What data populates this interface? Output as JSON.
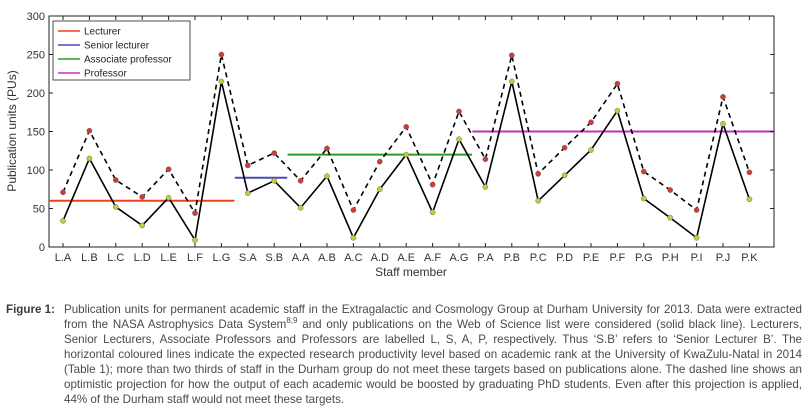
{
  "chart_data": {
    "type": "line",
    "xlabel": "Staff member",
    "ylabel": "Publication units (PUs)",
    "ylim": [
      0,
      300
    ],
    "yticks": [
      0,
      50,
      100,
      150,
      200,
      250,
      300
    ],
    "categories": [
      "L.A",
      "L.B",
      "L.C",
      "L.D",
      "L.E",
      "L.F",
      "L.G",
      "S.A",
      "S.B",
      "A.A",
      "A.B",
      "A.C",
      "A.D",
      "A.E",
      "A.F",
      "A.G",
      "P.A",
      "P.B",
      "P.C",
      "P.D",
      "P.E",
      "P.F",
      "P.G",
      "P.H",
      "P.I",
      "P.J",
      "P.K"
    ],
    "series": [
      {
        "name": "Publications (solid)",
        "style": "solid",
        "color": "#000000",
        "marker_color": "#c8c83a",
        "values": [
          34,
          115,
          52,
          28,
          64,
          9,
          215,
          70,
          86,
          51,
          92,
          12,
          75,
          120,
          45,
          140,
          78,
          215,
          60,
          93,
          126,
          177,
          63,
          38,
          12,
          160,
          62
        ]
      },
      {
        "name": "With PhD students (dashed)",
        "style": "dashed",
        "color": "#000000",
        "marker_color": "#d23a3a",
        "values": [
          71,
          151,
          87,
          65,
          101,
          44,
          250,
          106,
          122,
          86,
          128,
          48,
          111,
          156,
          81,
          176,
          114,
          249,
          95,
          129,
          162,
          212,
          98,
          74,
          48,
          195,
          97
        ]
      }
    ],
    "targets": [
      {
        "name": "Lecturer",
        "color": "#f04020",
        "value": 60,
        "from": "L.A",
        "to": "L.G"
      },
      {
        "name": "Senior lecturer",
        "color": "#4a4ab8",
        "value": 90,
        "from": "S.A",
        "to": "S.B"
      },
      {
        "name": "Associate professor",
        "color": "#2a9a2a",
        "value": 120,
        "from": "A.A",
        "to": "A.G"
      },
      {
        "name": "Professor",
        "color": "#c030c0",
        "value": 150,
        "from": "P.A",
        "to": "P.K"
      }
    ],
    "legend_position": "top-left"
  },
  "caption": {
    "label": "Figure 1:",
    "text_before_sup": "Publication units for permanent academic staff in the Extragalactic and Cosmology Group at Durham University for 2013. Data were extracted from the NASA Astrophysics Data System",
    "sup": "8,9",
    "text_after_sup": " and only publications on the Web of Science list were considered (solid black line). Lecturers, Senior Lecturers, Associate Professors and Professors are labelled L, S, A, P, respectively. Thus ‘S.B’ refers to ‘Senior Lecturer B’. The horizontal coloured lines indicate the expected research productivity level based on academic rank at the University of KwaZulu-Natal in 2014 (Table 1); more than two thirds of staff in the Durham group do not meet these targets based on publications alone. The dashed line shows an optimistic projection for how the output of each academic would be boosted by graduating PhD students. Even after this projection is applied, 44% of the Durham staff would not meet these targets."
  }
}
